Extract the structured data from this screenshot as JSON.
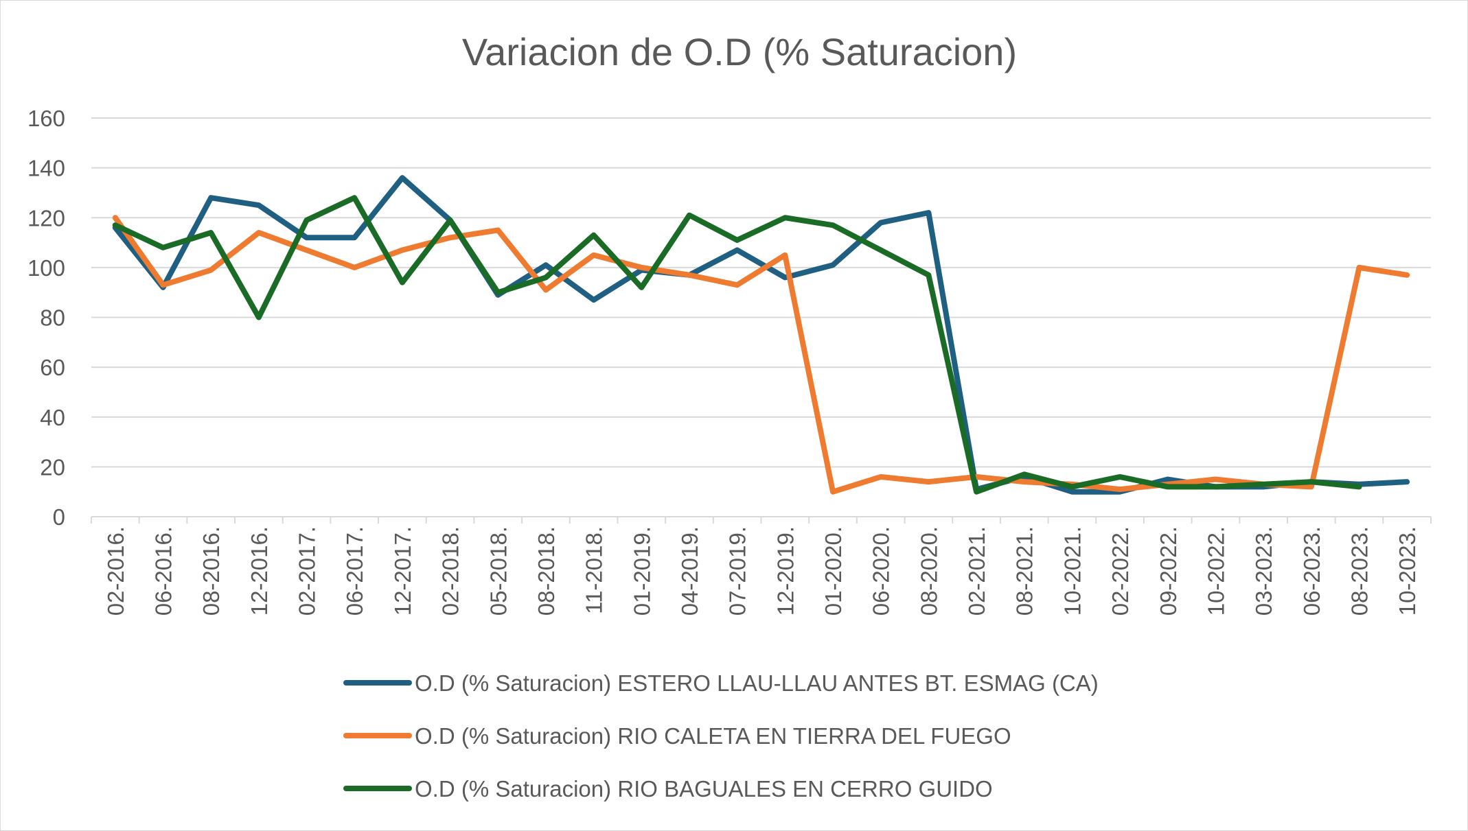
{
  "chart_data": {
    "type": "line",
    "title": "Variacion de O.D  (% Saturacion)",
    "xlabel": "",
    "ylabel": "",
    "ylim": [
      0,
      160
    ],
    "yticks": [
      0,
      20,
      40,
      60,
      80,
      100,
      120,
      140,
      160
    ],
    "grid": true,
    "legend_position": "bottom",
    "categories": [
      "02-2016.",
      "06-2016.",
      "08-2016.",
      "12-2016.",
      "02-2017.",
      "06-2017.",
      "12-2017.",
      "02-2018.",
      "05-2018.",
      "08-2018.",
      "11-2018.",
      "01-2019.",
      "04-2019.",
      "07-2019.",
      "12-2019.",
      "01-2020.",
      "06-2020.",
      "08-2020.",
      "02-2021.",
      "08-2021.",
      "10-2021.",
      "02-2022.",
      "09-2022.",
      "10-2022.",
      "03-2023.",
      "06-2023.",
      "08-2023.",
      "10-2023."
    ],
    "series": [
      {
        "name": "O.D  (% Saturacion)  ESTERO LLAU-LLAU ANTES BT. ESMAG (CA)",
        "color": "#1f5f82",
        "values": [
          116,
          92,
          128,
          125,
          112,
          112,
          136,
          119,
          89,
          101,
          87,
          99,
          97,
          107,
          96,
          101,
          118,
          122,
          11,
          16,
          10,
          10,
          15,
          12,
          12,
          14,
          13,
          14
        ]
      },
      {
        "name": "O.D  (% Saturacion) RIO CALETA EN TIERRA DEL FUEGO",
        "color": "#ee7b30",
        "values": [
          120,
          93,
          99,
          114,
          107,
          100,
          107,
          112,
          115,
          91,
          105,
          100,
          97,
          93,
          105,
          10,
          16,
          14,
          16,
          14,
          13,
          11,
          13,
          15,
          13,
          12,
          100,
          97
        ]
      },
      {
        "name": "O.D  (% Saturacion) RIO BAGUALES EN CERRO GUIDO",
        "color": "#1a6b25",
        "values": [
          117,
          108,
          114,
          80,
          119,
          128,
          94,
          119,
          90,
          96,
          113,
          92,
          121,
          111,
          120,
          117,
          107,
          97,
          10,
          17,
          12,
          16,
          12,
          12,
          13,
          14,
          12,
          null
        ]
      }
    ]
  }
}
